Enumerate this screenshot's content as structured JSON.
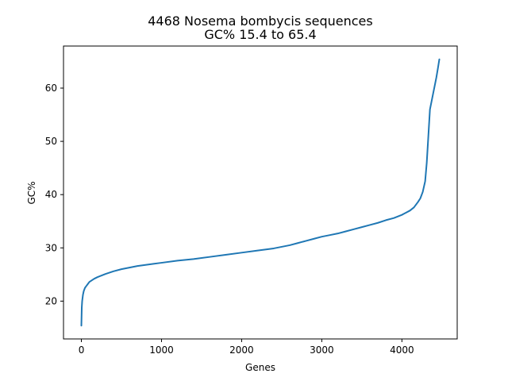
{
  "chart_data": {
    "type": "line",
    "title": "4468 Nosema bombycis sequences",
    "subtitle": "GC% 15.4 to 65.4",
    "xlabel": "Genes",
    "ylabel": "GC%",
    "xlim": [
      -223,
      4690
    ],
    "ylim": [
      12.9,
      67.9
    ],
    "x_ticks": [
      0,
      1000,
      2000,
      3000,
      4000
    ],
    "y_ticks": [
      20,
      30,
      40,
      50,
      60
    ],
    "grid": false,
    "legend": "none",
    "line_color": "#1f77b4",
    "series": [
      {
        "x": [
          0,
          5,
          10,
          20,
          30,
          45,
          60,
          80,
          100,
          130,
          160,
          200,
          250,
          300,
          400,
          500,
          600,
          700,
          800,
          900,
          1000,
          1200,
          1400,
          1600,
          1800,
          2000,
          2200,
          2400,
          2500,
          2600,
          2700,
          2800,
          2900,
          3000,
          3100,
          3200,
          3300,
          3400,
          3500,
          3600,
          3700,
          3800,
          3900,
          3950,
          4000,
          4050,
          4100,
          4150,
          4200,
          4230,
          4260,
          4290,
          4310,
          4330,
          4350,
          4370,
          4390,
          4410,
          4430,
          4450,
          4467
        ],
        "y": [
          15.4,
          18.8,
          20.0,
          21.2,
          21.9,
          22.5,
          22.8,
          23.2,
          23.6,
          23.9,
          24.2,
          24.5,
          24.8,
          25.1,
          25.6,
          26.0,
          26.3,
          26.6,
          26.8,
          27.0,
          27.2,
          27.6,
          27.9,
          28.3,
          28.7,
          29.1,
          29.5,
          29.9,
          30.2,
          30.5,
          30.9,
          31.3,
          31.7,
          32.1,
          32.4,
          32.7,
          33.1,
          33.5,
          33.9,
          34.3,
          34.7,
          35.2,
          35.6,
          35.9,
          36.2,
          36.6,
          37.0,
          37.6,
          38.6,
          39.3,
          40.5,
          42.5,
          46.0,
          51.0,
          56.0,
          57.5,
          59.0,
          60.5,
          62.0,
          63.8,
          65.4
        ]
      }
    ]
  }
}
